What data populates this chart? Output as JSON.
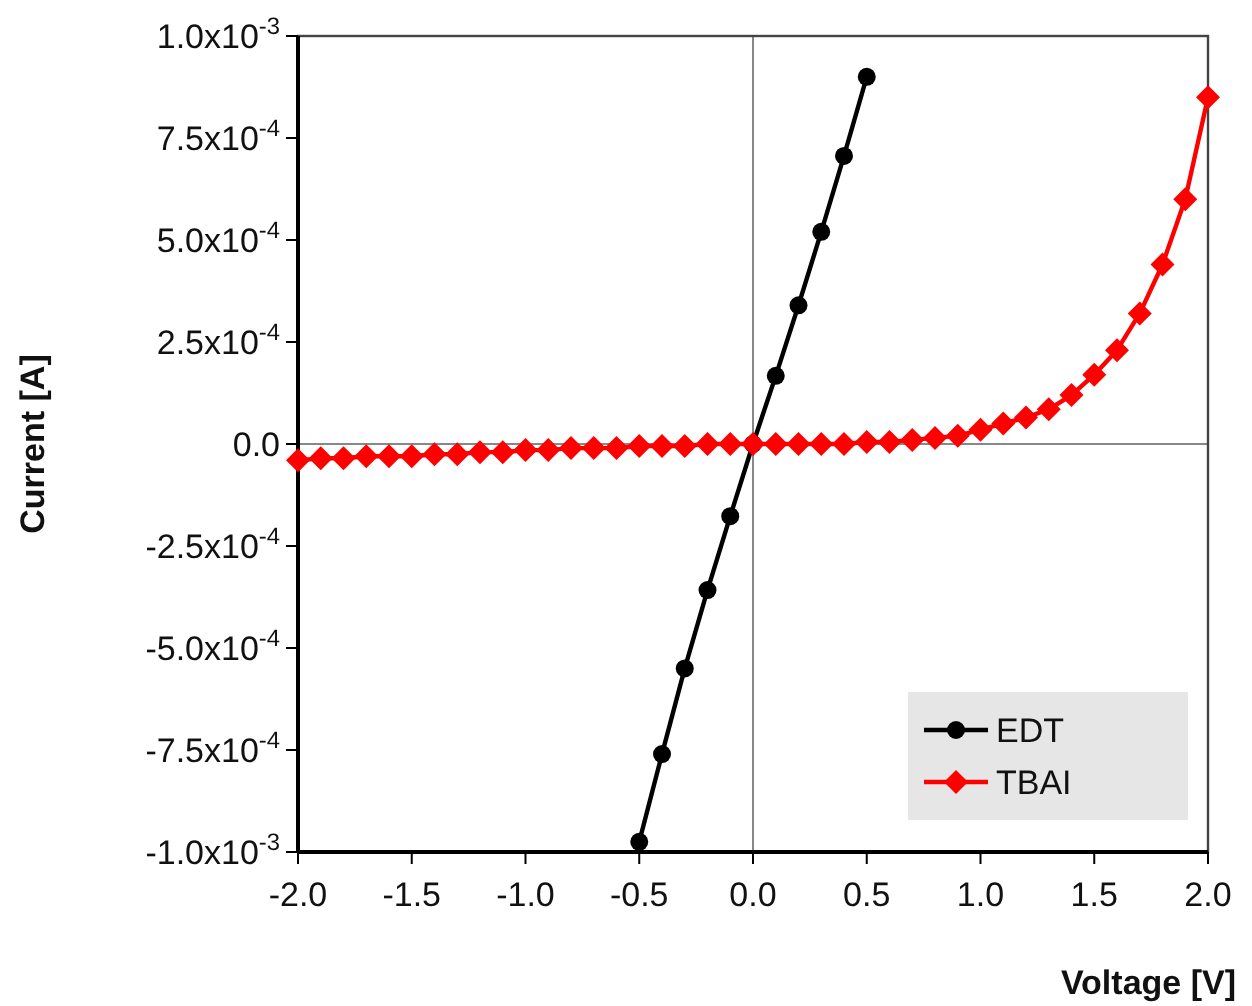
{
  "chart_data": {
    "type": "line",
    "xlabel": "Voltage [V]",
    "ylabel": "Current [A]",
    "xlim": [
      -2,
      2
    ],
    "ylim": [
      -0.001,
      0.001
    ],
    "xticks": [
      {
        "value": -2,
        "label": "-2.0"
      },
      {
        "value": -1.5,
        "label": "-1.5"
      },
      {
        "value": -1,
        "label": "-1.0"
      },
      {
        "value": -0.5,
        "label": "-0.5"
      },
      {
        "value": 0,
        "label": "0.0"
      },
      {
        "value": 0.5,
        "label": "0.5"
      },
      {
        "value": 1,
        "label": "1.0"
      },
      {
        "value": 1.5,
        "label": "1.5"
      },
      {
        "value": 2,
        "label": "2.0"
      }
    ],
    "yticks": [
      {
        "value": -0.001,
        "label": "-1.0x10$^{-3}$"
      },
      {
        "value": -0.00075,
        "label": "-7.5x10$^{-4}$"
      },
      {
        "value": -0.0005,
        "label": "-5.0x10$^{-4}$"
      },
      {
        "value": -0.00025,
        "label": "-2.5x10$^{-4}$"
      },
      {
        "value": 0,
        "label": "0.0"
      },
      {
        "value": 0.00025,
        "label": "2.5x10$^{-4}$"
      },
      {
        "value": 0.0005,
        "label": "5.0x10$^{-4}$"
      },
      {
        "value": 0.00075,
        "label": "7.5x10$^{-4}$"
      },
      {
        "value": 0.001,
        "label": "1.0x10$^{-3}$"
      }
    ],
    "legend": "bottom right",
    "line_style": "solid",
    "series": [
      {
        "name": "EDT",
        "color": "#000000",
        "marker": "circle",
        "x": [
          -0.5,
          -0.4,
          -0.3,
          -0.2,
          -0.1,
          0,
          0.1,
          0.2,
          0.3,
          0.4,
          0.5
        ],
        "values": [
          -0.000975,
          -0.00076,
          -0.00055,
          -0.000358,
          -0.000177,
          0,
          0.000167,
          0.00034,
          0.00052,
          0.000706,
          0.0009
        ]
      },
      {
        "name": "TBAI",
        "color": "#ff0000",
        "marker": "diamond",
        "x": [
          -2,
          -1.9,
          -1.8,
          -1.7,
          -1.6,
          -1.5,
          -1.4,
          -1.3,
          -1.2,
          -1.1,
          -1,
          -0.9,
          -0.8,
          -0.7,
          -0.6,
          -0.5,
          -0.4,
          -0.3,
          -0.2,
          -0.1,
          0,
          0.1,
          0.2,
          0.3,
          0.4,
          0.5,
          0.6,
          0.7,
          0.8,
          0.9,
          1,
          1.1,
          1.2,
          1.3,
          1.4,
          1.5,
          1.6,
          1.7,
          1.8,
          1.9,
          2
        ],
        "values": [
          -4e-05,
          -3.5e-05,
          -3.5e-05,
          -3e-05,
          -3e-05,
          -3e-05,
          -2.5e-05,
          -2.5e-05,
          -2e-05,
          -2e-05,
          -1.5e-05,
          -1.5e-05,
          -1e-05,
          -1e-05,
          -1e-05,
          -5e-06,
          -5e-06,
          -5e-06,
          0,
          0,
          0,
          0,
          0,
          0,
          0,
          5e-06,
          5e-06,
          1e-05,
          1.5e-05,
          2e-05,
          3.5e-05,
          5e-05,
          6.5e-05,
          8.5e-05,
          0.00012,
          0.00017,
          0.00023,
          0.00032,
          0.00044,
          0.0006,
          0.00085
        ]
      }
    ]
  }
}
